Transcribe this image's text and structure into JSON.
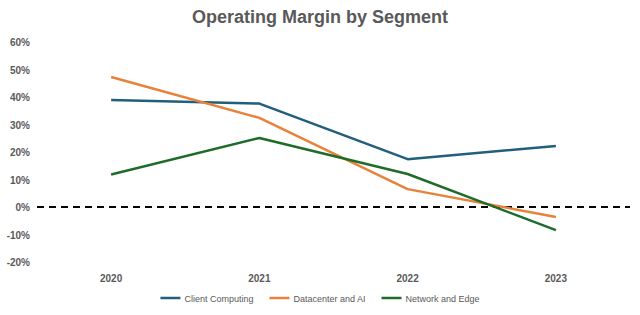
{
  "chart_data": {
    "type": "line",
    "title": "Operating Margin by Segment",
    "categories": [
      "2020",
      "2021",
      "2022",
      "2023"
    ],
    "series": [
      {
        "name": "Client Computing",
        "color": "#215f7c",
        "values": [
          38.9,
          37.6,
          17.4,
          22.2
        ]
      },
      {
        "name": "Datacenter and AI",
        "color": "#e8823a",
        "values": [
          47.3,
          32.4,
          6.5,
          -3.6
        ]
      },
      {
        "name": "Network and Edge",
        "color": "#1e6b2a",
        "values": [
          11.8,
          25.1,
          12.0,
          -8.4
        ]
      }
    ],
    "ylim": [
      -20,
      60
    ],
    "yticks": [
      {
        "value": -20,
        "label": "-20%"
      },
      {
        "value": -10,
        "label": "-10%"
      },
      {
        "value": 0,
        "label": "0%"
      },
      {
        "value": 10,
        "label": "10%"
      },
      {
        "value": 20,
        "label": "20%"
      },
      {
        "value": 30,
        "label": "30%"
      },
      {
        "value": 40,
        "label": "40%"
      },
      {
        "value": 50,
        "label": "50%"
      },
      {
        "value": 60,
        "label": "60%"
      }
    ],
    "grid": false,
    "legend": "bottom"
  }
}
